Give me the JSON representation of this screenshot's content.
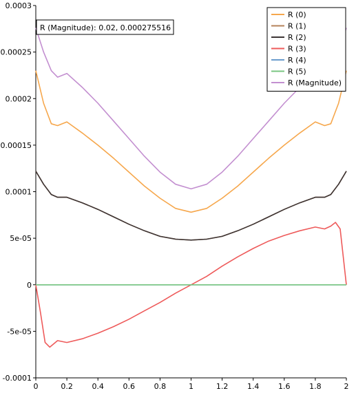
{
  "chart_data": {
    "type": "line",
    "title": "",
    "xlabel": "",
    "ylabel": "",
    "xlim": [
      0,
      2
    ],
    "ylim": [
      -0.0001,
      0.0003
    ],
    "grid": false,
    "legend_position": "top-right",
    "x_ticks": [
      0,
      0.2,
      0.4,
      0.6,
      0.8,
      1,
      1.2,
      1.4,
      1.6,
      1.8,
      2
    ],
    "x_tick_labels": [
      "0",
      "0.2",
      "0.4",
      "0.6",
      "0.8",
      "1",
      "1.2",
      "1.4",
      "1.6",
      "1.8",
      "2"
    ],
    "y_ticks": [
      -0.0001,
      -5e-05,
      0,
      5e-05,
      0.0001,
      0.00015,
      0.0002,
      0.00025,
      0.0003
    ],
    "y_tick_labels": [
      "-0.0001",
      "-5e-05",
      "0",
      "5e-05",
      "0.0001",
      "0.00015",
      "0.0002",
      "0.00025",
      "0.0003"
    ],
    "series": [
      {
        "name": "R (0)",
        "color": "#f6a74c",
        "x": [
          0,
          0.05,
          0.1,
          0.14,
          0.2,
          0.3,
          0.4,
          0.5,
          0.6,
          0.7,
          0.8,
          0.9,
          1.0,
          1.1,
          1.2,
          1.3,
          1.4,
          1.5,
          1.6,
          1.7,
          1.8,
          1.86,
          1.9,
          1.95,
          2.0
        ],
        "y": [
          0.00023,
          0.000195,
          0.000173,
          0.000171,
          0.000175,
          0.000163,
          0.00015,
          0.000136,
          0.000121,
          0.000106,
          9.3e-05,
          8.2e-05,
          7.8e-05,
          8.2e-05,
          9.3e-05,
          0.000106,
          0.000121,
          0.000136,
          0.00015,
          0.000163,
          0.000175,
          0.000171,
          0.000173,
          0.000195,
          0.00023
        ]
      },
      {
        "name": "R (1)",
        "color": "#b5825a",
        "x": [
          0,
          0.05,
          0.1,
          0.14,
          0.2,
          0.3,
          0.4,
          0.5,
          0.6,
          0.7,
          0.8,
          0.9,
          1.0,
          1.1,
          1.2,
          1.3,
          1.4,
          1.5,
          1.6,
          1.7,
          1.8,
          1.86,
          1.9,
          1.95,
          2.0
        ],
        "y": [
          0.000122,
          0.000108,
          9.7e-05,
          9.4e-05,
          9.4e-05,
          8.8e-05,
          8.1e-05,
          7.3e-05,
          6.5e-05,
          5.8e-05,
          5.2e-05,
          4.9e-05,
          4.8e-05,
          4.9e-05,
          5.2e-05,
          5.8e-05,
          6.5e-05,
          7.3e-05,
          8.1e-05,
          8.8e-05,
          9.4e-05,
          9.4e-05,
          9.7e-05,
          0.000108,
          0.000122
        ]
      },
      {
        "name": "R (2)",
        "color": "#3c3434",
        "x": [
          0,
          0.05,
          0.1,
          0.14,
          0.2,
          0.3,
          0.4,
          0.5,
          0.6,
          0.7,
          0.8,
          0.9,
          1.0,
          1.1,
          1.2,
          1.3,
          1.4,
          1.5,
          1.6,
          1.7,
          1.8,
          1.86,
          1.9,
          1.95,
          2.0
        ],
        "y": [
          0.000122,
          0.000108,
          9.7e-05,
          9.4e-05,
          9.4e-05,
          8.8e-05,
          8.1e-05,
          7.3e-05,
          6.5e-05,
          5.8e-05,
          5.2e-05,
          4.9e-05,
          4.8e-05,
          4.9e-05,
          5.2e-05,
          5.8e-05,
          6.5e-05,
          7.3e-05,
          8.1e-05,
          8.8e-05,
          9.4e-05,
          9.4e-05,
          9.7e-05,
          0.000108,
          0.000122
        ]
      },
      {
        "name": "R (3)",
        "color": "#ee5a5a",
        "x": [
          0,
          0.03,
          0.06,
          0.09,
          0.14,
          0.2,
          0.3,
          0.4,
          0.5,
          0.6,
          0.7,
          0.8,
          0.9,
          1.0,
          1.1,
          1.2,
          1.3,
          1.4,
          1.5,
          1.6,
          1.7,
          1.8,
          1.86,
          1.9,
          1.93,
          1.96,
          2.0
        ],
        "y": [
          0,
          -3e-05,
          -6.2e-05,
          -6.7e-05,
          -6e-05,
          -6.2e-05,
          -5.8e-05,
          -5.2e-05,
          -4.5e-05,
          -3.7e-05,
          -2.8e-05,
          -1.9e-05,
          -9e-06,
          0,
          9e-06,
          2e-05,
          3e-05,
          3.9e-05,
          4.7e-05,
          5.3e-05,
          5.8e-05,
          6.2e-05,
          6e-05,
          6.3e-05,
          6.7e-05,
          6e-05,
          0
        ]
      },
      {
        "name": "R (4)",
        "color": "#6a9ccd",
        "x": [
          0,
          2
        ],
        "y": [
          0,
          0
        ]
      },
      {
        "name": "R (5)",
        "color": "#78c680",
        "x": [
          0,
          2
        ],
        "y": [
          0,
          0
        ]
      },
      {
        "name": "R (Magnitude)",
        "color": "#c38fd0",
        "x": [
          0,
          0.05,
          0.1,
          0.14,
          0.2,
          0.3,
          0.4,
          0.5,
          0.6,
          0.7,
          0.8,
          0.9,
          1.0,
          1.1,
          1.2,
          1.3,
          1.4,
          1.5,
          1.6,
          1.7,
          1.8,
          1.86,
          1.9,
          1.95,
          2.0
        ],
        "y": [
          0.000276,
          0.00025,
          0.00023,
          0.000223,
          0.000227,
          0.000212,
          0.000195,
          0.000176,
          0.000157,
          0.000138,
          0.000121,
          0.000108,
          0.000103,
          0.000108,
          0.000121,
          0.000138,
          0.000157,
          0.000176,
          0.000195,
          0.000212,
          0.000227,
          0.000223,
          0.00023,
          0.00025,
          0.000276
        ]
      }
    ],
    "tooltip": {
      "text": "R (Magnitude): 0.02,  0.000275516"
    }
  }
}
